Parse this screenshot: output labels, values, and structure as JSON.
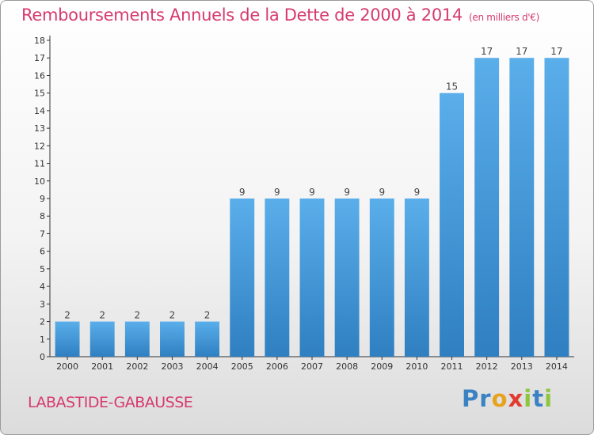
{
  "chart_data": {
    "type": "bar",
    "title": "Remboursements Annuels de la Dette de 2000 à 2014",
    "subtitle": "(en milliers d'€)",
    "xlabel": "",
    "ylabel": "",
    "categories": [
      "2000",
      "2001",
      "2002",
      "2003",
      "2004",
      "2005",
      "2006",
      "2007",
      "2008",
      "2009",
      "2010",
      "2011",
      "2012",
      "2013",
      "2014"
    ],
    "values": [
      2,
      2,
      2,
      2,
      2,
      9,
      9,
      9,
      9,
      9,
      9,
      15,
      17,
      17,
      17
    ],
    "ylim": [
      0,
      18
    ],
    "yticks": [
      0,
      1,
      2,
      3,
      4,
      5,
      6,
      7,
      8,
      9,
      10,
      11,
      12,
      13,
      14,
      15,
      16,
      17,
      18
    ],
    "grid": false,
    "bar_color": "#4a9de0",
    "data_labels": true
  },
  "footer": {
    "commune": "LABASTIDE-GABAUSSE",
    "brand_letters": [
      {
        "ch": "P",
        "color": "#3b82c4"
      },
      {
        "ch": "r",
        "color": "#3b82c4"
      },
      {
        "ch": "o",
        "color": "#e8a21d"
      },
      {
        "ch": "x",
        "color": "#e23a2f"
      },
      {
        "ch": "i",
        "color": "#8cc63e"
      },
      {
        "ch": "t",
        "color": "#3b82c4"
      },
      {
        "ch": "i",
        "color": "#8cc63e"
      }
    ]
  },
  "colors": {
    "title": "#d63a6e",
    "axis": "#333333"
  }
}
